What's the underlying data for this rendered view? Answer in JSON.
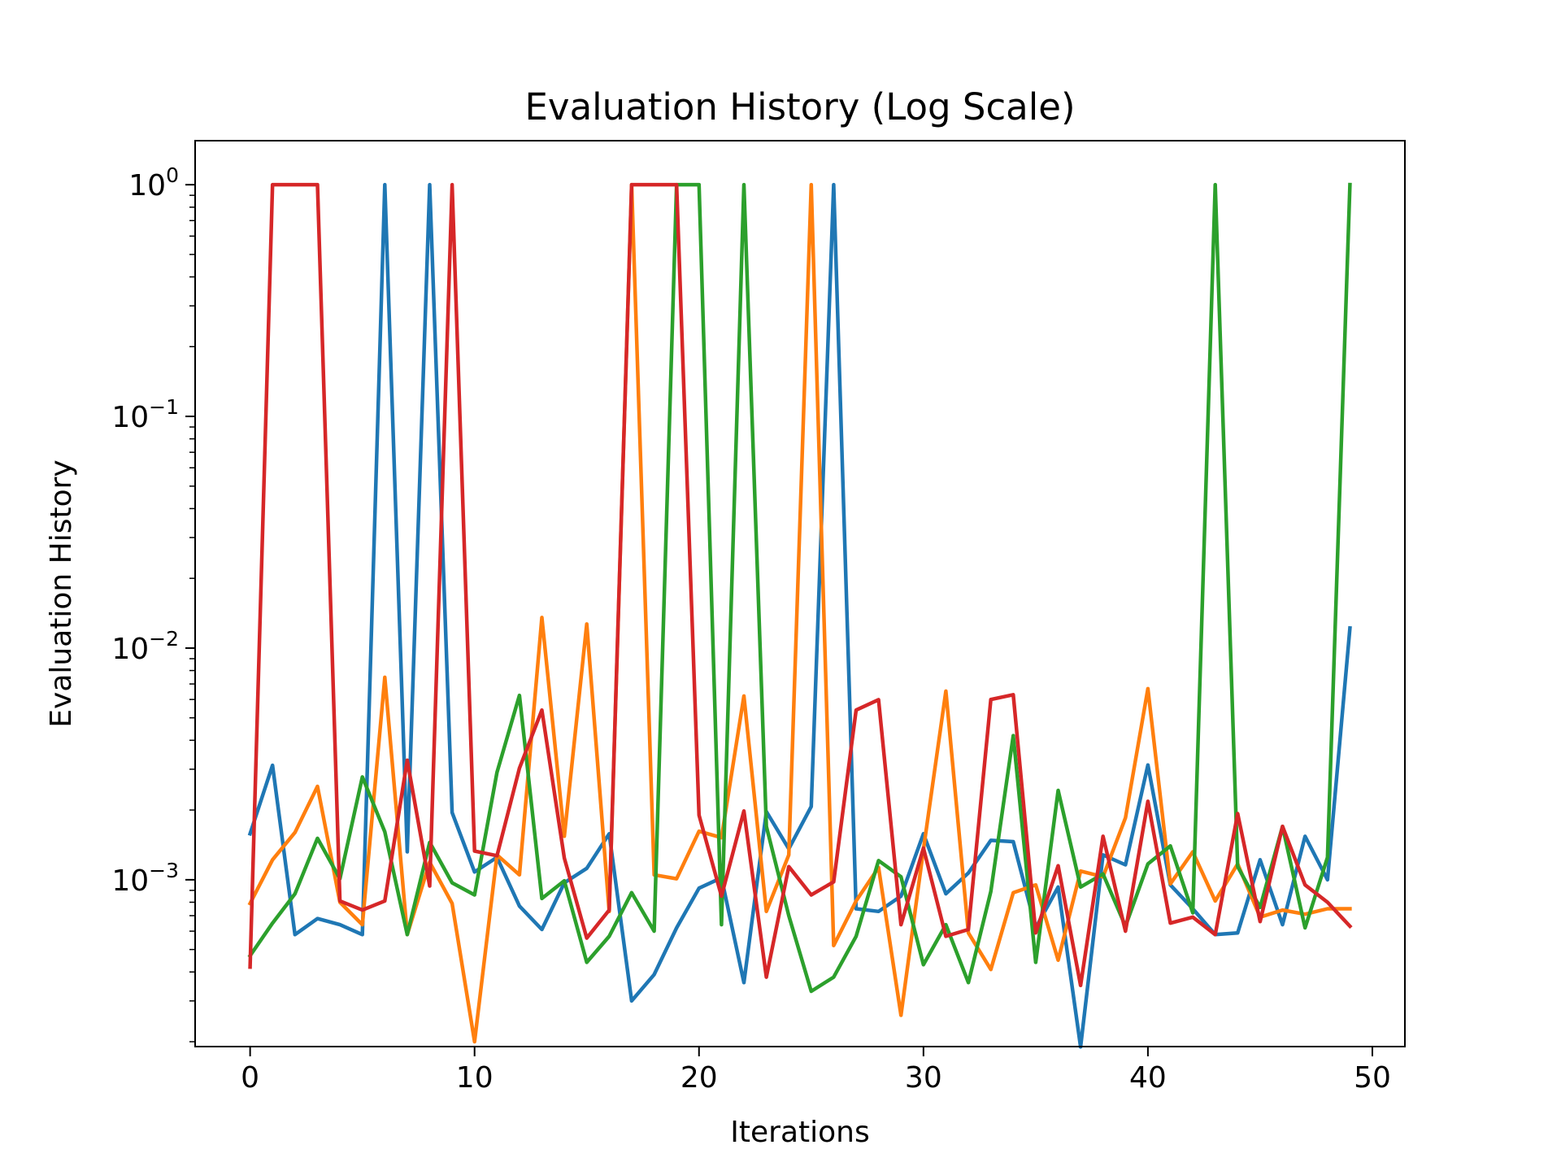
{
  "chart_data": {
    "type": "line",
    "title": "Evaluation History (Log Scale)",
    "xlabel": "Iterations",
    "ylabel": "Evaluation History",
    "yscale": "log",
    "xlim": [
      -2.45,
      51.45
    ],
    "ylim_log10": [
      -3.72,
      0.19
    ],
    "grid": false,
    "xticks": [
      {
        "value": 0,
        "label": "0"
      },
      {
        "value": 10,
        "label": "10"
      },
      {
        "value": 20,
        "label": "20"
      },
      {
        "value": 30,
        "label": "30"
      },
      {
        "value": 40,
        "label": "40"
      },
      {
        "value": 50,
        "label": "50"
      }
    ],
    "yticks": [
      {
        "value": 0.001,
        "base": "10",
        "exp": "−3"
      },
      {
        "value": 0.01,
        "base": "10",
        "exp": "−2"
      },
      {
        "value": 0.1,
        "base": "10",
        "exp": "−1"
      },
      {
        "value": 1,
        "base": "10",
        "exp": "0"
      }
    ],
    "x": [
      0,
      1,
      2,
      3,
      4,
      5,
      6,
      7,
      8,
      9,
      10,
      11,
      12,
      13,
      14,
      15,
      16,
      17,
      18,
      19,
      20,
      21,
      22,
      23,
      24,
      25,
      26,
      27,
      28,
      29,
      30,
      31,
      32,
      33,
      34,
      35,
      36,
      37,
      38,
      39,
      40,
      41,
      42,
      43,
      44,
      45,
      46,
      47,
      48,
      49
    ],
    "series": [
      {
        "color": "#1f77b4",
        "values": [
          0.00158,
          0.00312,
          0.00058,
          0.00068,
          0.00064,
          0.00058,
          1,
          0.00132,
          1,
          0.00195,
          0.00108,
          0.00125,
          0.00077,
          0.00061,
          0.00097,
          0.00112,
          0.00158,
          0.0003,
          0.00039,
          0.00062,
          0.00092,
          0.00102,
          0.00036,
          0.00197,
          0.00136,
          0.00207,
          1,
          0.00075,
          0.00073,
          0.00085,
          0.00158,
          0.00087,
          0.00107,
          0.00148,
          0.00146,
          0.00062,
          0.00093,
          0.00019,
          0.00128,
          0.00116,
          0.00313,
          0.00095,
          0.00075,
          0.00058,
          0.00059,
          0.00122,
          0.00064,
          0.00154,
          0.001,
          0.0122
        ]
      },
      {
        "color": "#ff7f0e",
        "values": [
          0.00079,
          0.00122,
          0.0016,
          0.00253,
          0.0008,
          0.00064,
          0.00748,
          0.00058,
          0.00119,
          0.00079,
          0.0002,
          0.00128,
          0.00105,
          0.01355,
          0.00154,
          0.0127,
          0.00073,
          1,
          0.00105,
          0.00101,
          0.00162,
          0.00152,
          0.00621,
          0.00073,
          0.00128,
          1,
          0.00052,
          0.00081,
          0.00113,
          0.00026,
          0.00135,
          0.00652,
          0.00059,
          0.00041,
          0.00088,
          0.00095,
          0.00045,
          0.00109,
          0.00103,
          0.00185,
          0.00668,
          0.00096,
          0.00132,
          0.00081,
          0.00117,
          0.00069,
          0.00074,
          0.00071,
          0.00075,
          0.00075
        ]
      },
      {
        "color": "#2ca02c",
        "values": [
          0.00047,
          0.00065,
          0.00087,
          0.00151,
          0.00101,
          0.00278,
          0.00161,
          0.00058,
          0.00145,
          0.00097,
          0.00086,
          0.00291,
          0.00625,
          0.00083,
          0.00099,
          0.00044,
          0.00057,
          0.00088,
          0.0006,
          1,
          1,
          0.00064,
          1,
          0.0017,
          0.0007,
          0.00033,
          0.00038,
          0.00057,
          0.00121,
          0.00103,
          0.00043,
          0.00064,
          0.00036,
          0.00089,
          0.00419,
          0.00044,
          0.00243,
          0.00093,
          0.00106,
          0.00063,
          0.00117,
          0.0014,
          0.00072,
          1,
          0.00114,
          0.00076,
          0.0017,
          0.00062,
          0.00125,
          1
        ]
      },
      {
        "color": "#d62728",
        "values": [
          0.00042,
          1,
          1,
          1,
          0.00081,
          0.00074,
          0.00081,
          0.00328,
          0.00094,
          1,
          0.00133,
          0.00127,
          0.00303,
          0.0054,
          0.00124,
          0.00056,
          0.00074,
          1,
          1,
          1,
          0.0019,
          0.00085,
          0.00198,
          0.00038,
          0.00114,
          0.00086,
          0.00098,
          0.0054,
          0.00599,
          0.00064,
          0.00137,
          0.00057,
          0.00061,
          0.006,
          0.00629,
          0.00059,
          0.00115,
          0.00035,
          0.00154,
          0.0006,
          0.00218,
          0.00065,
          0.00069,
          0.00058,
          0.00193,
          0.00066,
          0.0017,
          0.00095,
          0.0008,
          0.00063
        ]
      }
    ]
  }
}
